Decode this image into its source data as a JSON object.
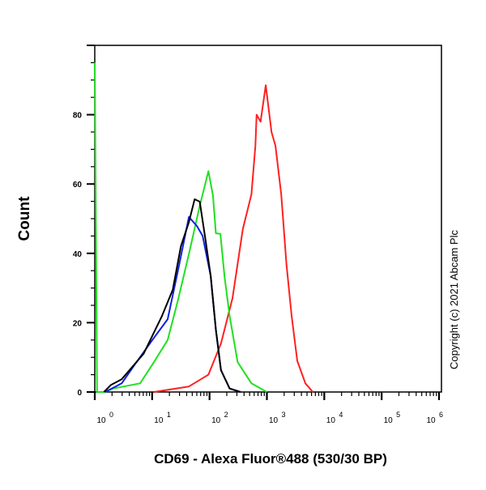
{
  "chart_data": {
    "type": "line",
    "title": "",
    "xlabel": "CD69 - Alexa Fluor®488 (530/30 BP)",
    "ylabel": "Count",
    "x_scale": "log",
    "xlim_log10": [
      0,
      6
    ],
    "ylim": [
      0,
      100
    ],
    "x_ticks": [
      {
        "base": "10",
        "exp": "0"
      },
      {
        "base": "10",
        "exp": "1"
      },
      {
        "base": "10",
        "exp": "2"
      },
      {
        "base": "10",
        "exp": "3"
      },
      {
        "base": "10",
        "exp": "4"
      },
      {
        "base": "10",
        "exp": "5"
      },
      {
        "base": "10",
        "exp": "6"
      }
    ],
    "y_ticks": [
      "0",
      "20",
      "40",
      "60",
      "80"
    ],
    "grid": false,
    "annotation": "Copyright (c) 2021 Abcam Plc",
    "series": [
      {
        "color": "#ff2020",
        "points_log10x_count": [
          [
            1.03,
            0
          ],
          [
            1.64,
            1.6
          ],
          [
            1.98,
            5
          ],
          [
            2.2,
            14
          ],
          [
            2.4,
            27
          ],
          [
            2.58,
            47
          ],
          [
            2.73,
            57
          ],
          [
            2.8,
            71
          ],
          [
            2.82,
            80
          ],
          [
            2.89,
            78
          ],
          [
            2.98,
            88.5
          ],
          [
            3.08,
            75
          ],
          [
            3.15,
            71
          ],
          [
            3.25,
            57
          ],
          [
            3.34,
            37
          ],
          [
            3.43,
            22
          ],
          [
            3.53,
            9
          ],
          [
            3.67,
            2.5
          ],
          [
            3.8,
            0
          ]
        ]
      },
      {
        "color": "#20e020",
        "points_log10x_count": [
          [
            0,
            95
          ],
          [
            0.04,
            0
          ],
          [
            0.18,
            0
          ],
          [
            0.32,
            1
          ],
          [
            0.79,
            2.5
          ],
          [
            1.03,
            8.6
          ],
          [
            1.27,
            15
          ],
          [
            1.45,
            26.5
          ],
          [
            1.64,
            39.8
          ],
          [
            1.83,
            53.7
          ],
          [
            1.98,
            63.7
          ],
          [
            2.06,
            56.7
          ],
          [
            2.11,
            45.8
          ],
          [
            2.19,
            45.6
          ],
          [
            2.26,
            33.5
          ],
          [
            2.35,
            21.9
          ],
          [
            2.49,
            8.6
          ],
          [
            2.73,
            2.5
          ],
          [
            3.0,
            0
          ]
        ]
      },
      {
        "color": "#1020e0",
        "points_log10x_count": [
          [
            0.18,
            0
          ],
          [
            0.47,
            2.5
          ],
          [
            0.7,
            8
          ],
          [
            1.03,
            15.6
          ],
          [
            1.27,
            21
          ],
          [
            1.45,
            35
          ],
          [
            1.64,
            50.5
          ],
          [
            1.78,
            47.9
          ],
          [
            1.88,
            45
          ],
          [
            2.02,
            33.5
          ],
          [
            2.11,
            18
          ],
          [
            2.2,
            6.3
          ],
          [
            2.35,
            1
          ],
          [
            2.54,
            0
          ]
        ]
      },
      {
        "color": "#000000",
        "points_log10x_count": [
          [
            0.16,
            0
          ],
          [
            0.28,
            2
          ],
          [
            0.47,
            3.7
          ],
          [
            0.85,
            11
          ],
          [
            1.17,
            21.9
          ],
          [
            1.36,
            29.5
          ],
          [
            1.5,
            42
          ],
          [
            1.64,
            49
          ],
          [
            1.74,
            55.6
          ],
          [
            1.83,
            54.9
          ],
          [
            1.92,
            45
          ],
          [
            2.02,
            33.5
          ],
          [
            2.11,
            18
          ],
          [
            2.2,
            6.3
          ],
          [
            2.35,
            1
          ],
          [
            2.54,
            0
          ]
        ]
      }
    ]
  }
}
